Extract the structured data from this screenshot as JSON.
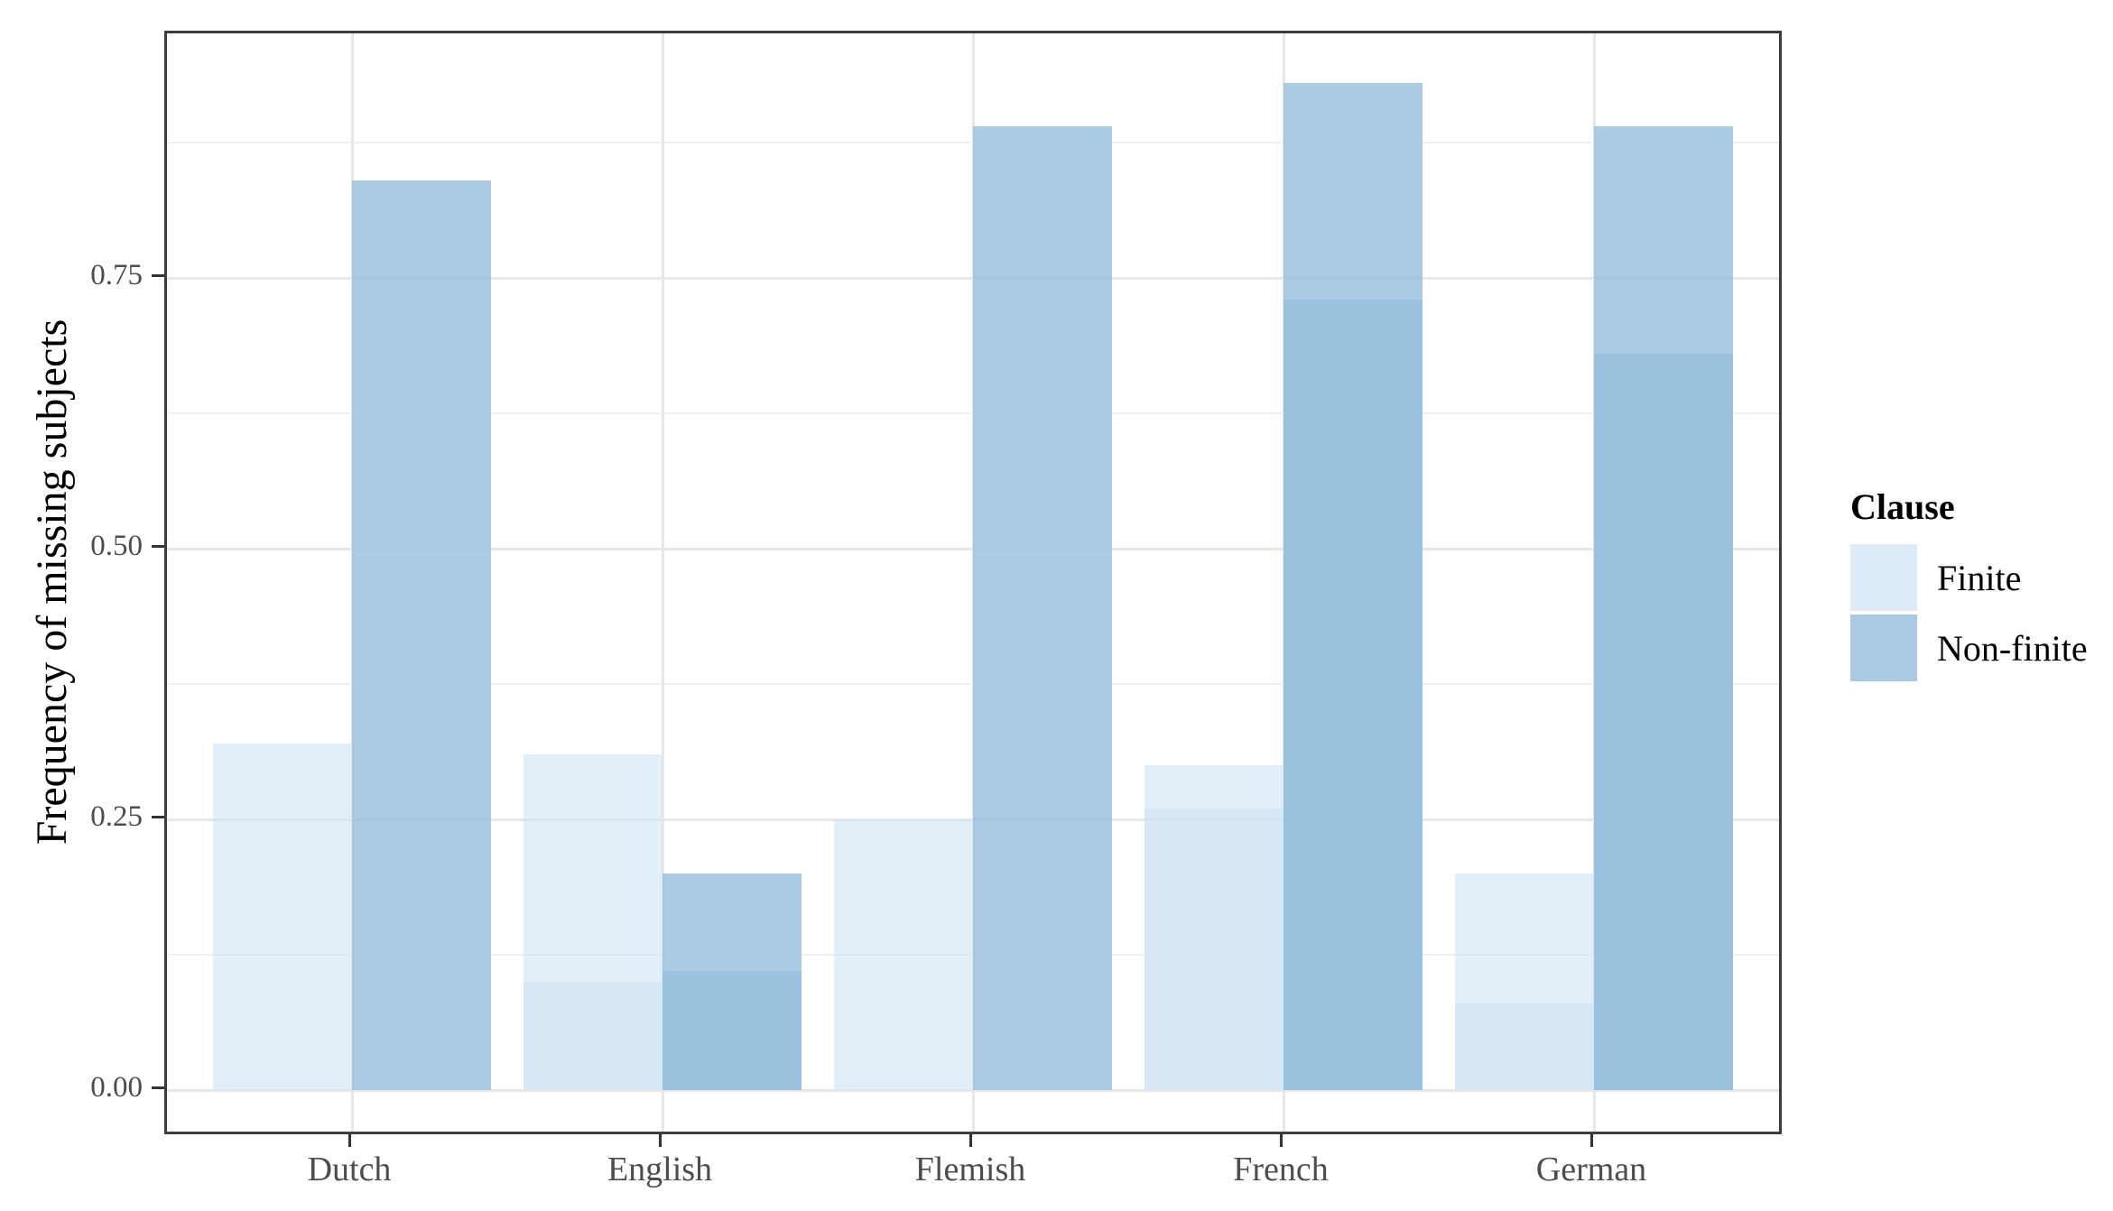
{
  "chart_data": {
    "type": "bar",
    "title": "",
    "xlabel": "",
    "ylabel": "Frequency of missing subjects",
    "categories": [
      "Dutch",
      "English",
      "Flemish",
      "French",
      "German"
    ],
    "y_ticks": [
      {
        "value": 0.0,
        "label": "0.00"
      },
      {
        "value": 0.25,
        "label": "0.25"
      },
      {
        "value": 0.5,
        "label": "0.50"
      },
      {
        "value": 0.75,
        "label": "0.75"
      }
    ],
    "y_minor_gridlines": [
      0.125,
      0.375,
      0.625,
      0.875
    ],
    "ylim": [
      0,
      0.975
    ],
    "grid": "horizontal major+minor, vertical major at each category",
    "bar_layout": "dodged pairs, translucent fills; darker lower segment where two overlapping observations stack",
    "legend": {
      "title": "Clause",
      "position": "right",
      "entries": [
        {
          "label": "Finite",
          "color": "#DDEBF6"
        },
        {
          "label": "Non-finite",
          "color": "#A9CBE2"
        }
      ]
    },
    "series": [
      {
        "name": "Finite",
        "fill": "rgba(207,227,243,0.60)",
        "single_shade": "#E2EEF8",
        "overlap_shade": "#D7E6F2",
        "values": [
          0.32,
          0.31,
          0.25,
          0.3,
          0.2
        ],
        "overlap_values": [
          null,
          0.1,
          null,
          0.26,
          0.08
        ]
      },
      {
        "name": "Non-finite",
        "fill": "rgba(151,193,221,0.83)",
        "single_shade": "#A9CCE3",
        "overlap_shade": "#9AC4DD",
        "values": [
          0.84,
          0.2,
          0.89,
          0.93,
          0.89
        ],
        "overlap_values": [
          null,
          0.11,
          null,
          0.73,
          0.68
        ]
      }
    ]
  }
}
